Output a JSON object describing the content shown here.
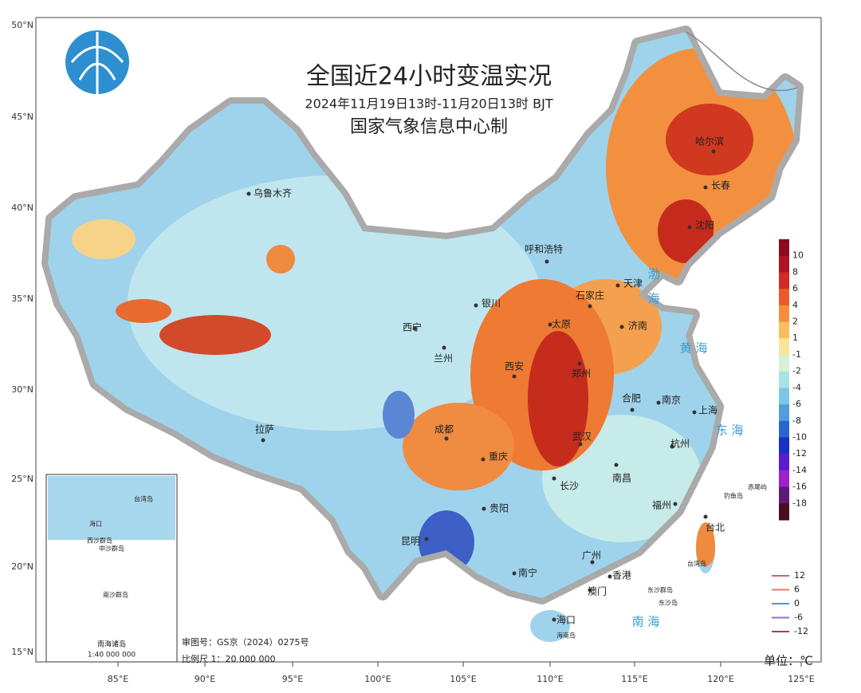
{
  "header": {
    "title": "全国近24小时变温实况",
    "subtitle": "2024年11月19日13时-11月20日13时 BJT",
    "organization": "国家气象信息中心制"
  },
  "axes": {
    "latitude_labels": [
      "50°N",
      "45°N",
      "40°N",
      "35°N",
      "30°N",
      "25°N",
      "20°N",
      "15°N"
    ],
    "longitude_labels": [
      "85°E",
      "90°E",
      "95°E",
      "100°E",
      "105°E",
      "110°E",
      "115°E",
      "120°E",
      "125°E"
    ]
  },
  "colorbar": {
    "labels": [
      "10",
      "8",
      "6",
      "4",
      "2",
      "1",
      "-1",
      "-2",
      "-4",
      "-6",
      "-8",
      "-10",
      "-12",
      "-14",
      "-16",
      "-18"
    ],
    "colors": [
      "#8a0a1e",
      "#b01323",
      "#d42a25",
      "#ec5a2a",
      "#f58e3c",
      "#f9bd5e",
      "#fbe49a",
      "#d9f0d8",
      "#a8e2e6",
      "#7dc6e6",
      "#4f9fdc",
      "#2a64d0",
      "#1b2fc4",
      "#5d1ad0",
      "#a020d0",
      "#5e1a7a",
      "#4a0c20"
    ]
  },
  "contour_legend": {
    "labels": [
      "12",
      "6",
      "0",
      "-6",
      "-12"
    ],
    "colors": [
      "#d06070",
      "#e87a6a",
      "#5a8fd8",
      "#9a6ad8",
      "#8a4a6a"
    ]
  },
  "cities": [
    "乌鲁木齐",
    "呼和浩特",
    "哈尔滨",
    "长春",
    "沈阳",
    "天津",
    "石家庄",
    "银川",
    "太原",
    "济南",
    "西宁",
    "兰州",
    "西安",
    "郑州",
    "合肥",
    "南京",
    "上海",
    "成都",
    "武汉",
    "重庆",
    "杭州",
    "拉萨",
    "长沙",
    "南昌",
    "贵阳",
    "福州",
    "台北",
    "昆明",
    "南宁",
    "广州",
    "香港",
    "澳门",
    "海口"
  ],
  "seas": [
    "渤",
    "海",
    "黄  海",
    "东  海",
    "南  海"
  ],
  "islands": [
    "钓鱼岛",
    "赤尾屿",
    "台湾岛",
    "东沙群岛",
    "东沙岛",
    "海南岛"
  ],
  "inset": {
    "title": "南海诸岛",
    "scale": "1:40 000 000",
    "labels": [
      "台湾岛",
      "海口",
      "西沙群岛",
      "中沙群岛",
      "南沙群岛"
    ]
  },
  "footer": {
    "approval": "审图号：GS京（2024）0275号",
    "scale": "比例尺 1：20 000 000",
    "unit": "单位：℃"
  }
}
